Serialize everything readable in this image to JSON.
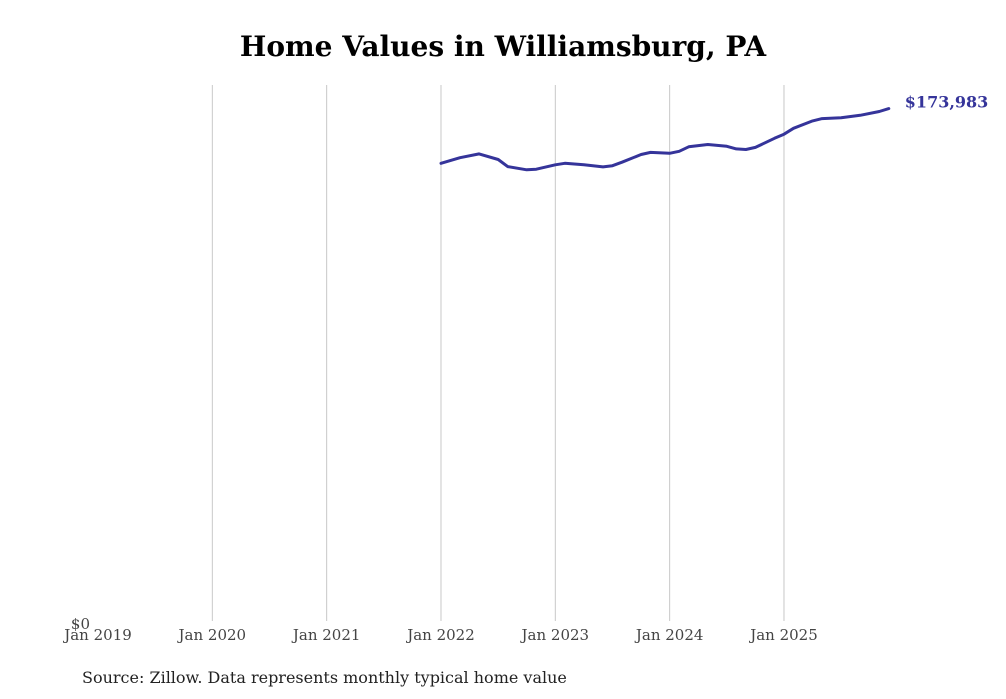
{
  "chart_data": {
    "type": "line",
    "title": "Home Values in Williamsburg, PA",
    "source": "Source: Zillow. Data represents monthly typical home value",
    "x_start": "2019-01",
    "x_end": "2025-12",
    "tick_labels": [
      "Jan 2019",
      "Jan 2020",
      "Jan 2021",
      "Jan 2022",
      "Jan 2023",
      "Jan 2024",
      "Jan 2025"
    ],
    "y_tick_label": "$0",
    "ylim": [
      0,
      182000
    ],
    "end_label": "$173,983",
    "series": [
      {
        "name": "Typical home value",
        "color": "#35349a",
        "points": [
          {
            "x": "2022-01",
            "y": 155400
          },
          {
            "x": "2022-03",
            "y": 157300
          },
          {
            "x": "2022-05",
            "y": 158600
          },
          {
            "x": "2022-07",
            "y": 156700
          },
          {
            "x": "2022-08",
            "y": 154300
          },
          {
            "x": "2022-10",
            "y": 153200
          },
          {
            "x": "2022-11",
            "y": 153400
          },
          {
            "x": "2023-01",
            "y": 154900
          },
          {
            "x": "2023-02",
            "y": 155400
          },
          {
            "x": "2023-04",
            "y": 154900
          },
          {
            "x": "2023-06",
            "y": 154200
          },
          {
            "x": "2023-07",
            "y": 154600
          },
          {
            "x": "2023-08",
            "y": 155800
          },
          {
            "x": "2023-10",
            "y": 158400
          },
          {
            "x": "2023-11",
            "y": 159100
          },
          {
            "x": "2024-01",
            "y": 158800
          },
          {
            "x": "2024-02",
            "y": 159500
          },
          {
            "x": "2024-03",
            "y": 161000
          },
          {
            "x": "2024-05",
            "y": 161800
          },
          {
            "x": "2024-07",
            "y": 161200
          },
          {
            "x": "2024-08",
            "y": 160300
          },
          {
            "x": "2024-09",
            "y": 160100
          },
          {
            "x": "2024-10",
            "y": 160800
          },
          {
            "x": "2024-12",
            "y": 163900
          },
          {
            "x": "2025-01",
            "y": 165300
          },
          {
            "x": "2025-02",
            "y": 167300
          },
          {
            "x": "2025-04",
            "y": 169800
          },
          {
            "x": "2025-05",
            "y": 170600
          },
          {
            "x": "2025-07",
            "y": 170900
          },
          {
            "x": "2025-09",
            "y": 171700
          },
          {
            "x": "2025-11",
            "y": 173000
          },
          {
            "x": "2025-12",
            "y": 173983
          }
        ]
      }
    ]
  }
}
